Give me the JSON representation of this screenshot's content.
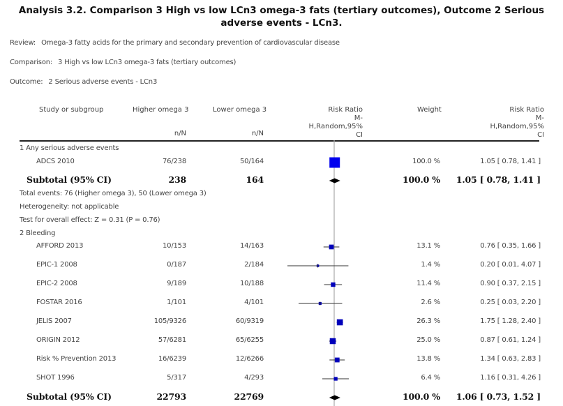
{
  "title": "Analysis 3.2.   Comparison 3 High vs low LCn3 omega-3 fats (tertiary outcomes), Outcome 2 Serious adverse events - LCn3.",
  "meta": {
    "review_label": "Review:",
    "review_value": "Omega-3 fatty acids for the primary and secondary prevention of cardiovascular disease",
    "comparison_label": "Comparison:",
    "comparison_value": "3 High vs low LCn3 omega-3 fats (tertiary outcomes)",
    "outcome_label": "Outcome:",
    "outcome_value": "2 Serious adverse events - LCn3"
  },
  "headers": {
    "study": "Study or subgroup",
    "higher": "Higher omega 3",
    "higher_unit": "n/N",
    "lower": "Lower omega 3",
    "lower_unit": "n/N",
    "rr_plot": [
      "Risk Ratio",
      "M-",
      "H,Random,95%",
      "CI"
    ],
    "weight": "Weight",
    "rr_text": [
      "Risk Ratio",
      "M-",
      "H,Random,95%",
      "CI"
    ]
  },
  "colors": {
    "square": "#0000ee",
    "diamond": "#000000",
    "line": "#333333",
    "null_line": "#aaaaaa"
  },
  "chart_data": {
    "type": "forest",
    "measure": "Risk Ratio (M-H, Random, 95% CI)",
    "scale": "log",
    "null_value": 1,
    "subgroups": [
      {
        "label": "1 Any serious adverse events",
        "studies": [
          {
            "name": "ADCS 2010",
            "higher": "76/238",
            "lower": "50/164",
            "weight": "100.0 %",
            "rr": 1.05,
            "lo": 0.78,
            "hi": 1.41,
            "text": "1.05 [ 0.78, 1.41 ]"
          }
        ],
        "subtotal": {
          "label": "Subtotal (95% CI)",
          "higher": "238",
          "lower": "164",
          "weight": "100.0 %",
          "rr": 1.05,
          "lo": 0.78,
          "hi": 1.41,
          "text": "1.05 [ 0.78, 1.41 ]"
        },
        "notes": [
          "Total events: 76 (Higher omega 3), 50 (Lower omega 3)",
          "Heterogeneity: not applicable",
          "Test for overall effect: Z = 0.31  (P = 0.76)"
        ]
      },
      {
        "label": "2 Bleeding",
        "studies": [
          {
            "name": "AFFORD 2013",
            "higher": "10/153",
            "lower": "14/163",
            "weight": "13.1 %",
            "rr": 0.76,
            "lo": 0.35,
            "hi": 1.66,
            "text": "0.76 [ 0.35, 1.66 ]"
          },
          {
            "name": "EPIC-1 2008",
            "higher": "0/187",
            "lower": "2/184",
            "weight": "1.4 %",
            "rr": 0.2,
            "lo": 0.01,
            "hi": 4.07,
            "text": "0.20 [ 0.01, 4.07 ]"
          },
          {
            "name": "EPIC-2 2008",
            "higher": "9/189",
            "lower": "10/188",
            "weight": "11.4 %",
            "rr": 0.9,
            "lo": 0.37,
            "hi": 2.15,
            "text": "0.90 [ 0.37, 2.15 ]"
          },
          {
            "name": "FOSTAR 2016",
            "higher": "1/101",
            "lower": "4/101",
            "weight": "2.6 %",
            "rr": 0.25,
            "lo": 0.03,
            "hi": 2.2,
            "text": "0.25 [ 0.03, 2.20 ]"
          },
          {
            "name": "JELIS 2007",
            "higher": "105/9326",
            "lower": "60/9319",
            "weight": "26.3 %",
            "rr": 1.75,
            "lo": 1.28,
            "hi": 2.4,
            "text": "1.75 [ 1.28, 2.40 ]"
          },
          {
            "name": "ORIGIN 2012",
            "higher": "57/6281",
            "lower": "65/6255",
            "weight": "25.0 %",
            "rr": 0.87,
            "lo": 0.61,
            "hi": 1.24,
            "text": "0.87 [ 0.61, 1.24 ]"
          },
          {
            "name": "Risk % Prevention 2013",
            "higher": "16/6239",
            "lower": "12/6266",
            "weight": "13.8 %",
            "rr": 1.34,
            "lo": 0.63,
            "hi": 2.83,
            "text": "1.34 [ 0.63, 2.83 ]"
          },
          {
            "name": "SHOT 1996",
            "higher": "5/317",
            "lower": "4/293",
            "weight": "6.4 %",
            "rr": 1.16,
            "lo": 0.31,
            "hi": 4.26,
            "text": "1.16 [ 0.31, 4.26 ]"
          }
        ],
        "subtotal": {
          "label": "Subtotal (95% CI)",
          "higher": "22793",
          "lower": "22769",
          "weight": "100.0 %",
          "rr": 1.06,
          "lo": 0.73,
          "hi": 1.52,
          "text": "1.06 [ 0.73, 1.52 ]"
        }
      }
    ]
  }
}
